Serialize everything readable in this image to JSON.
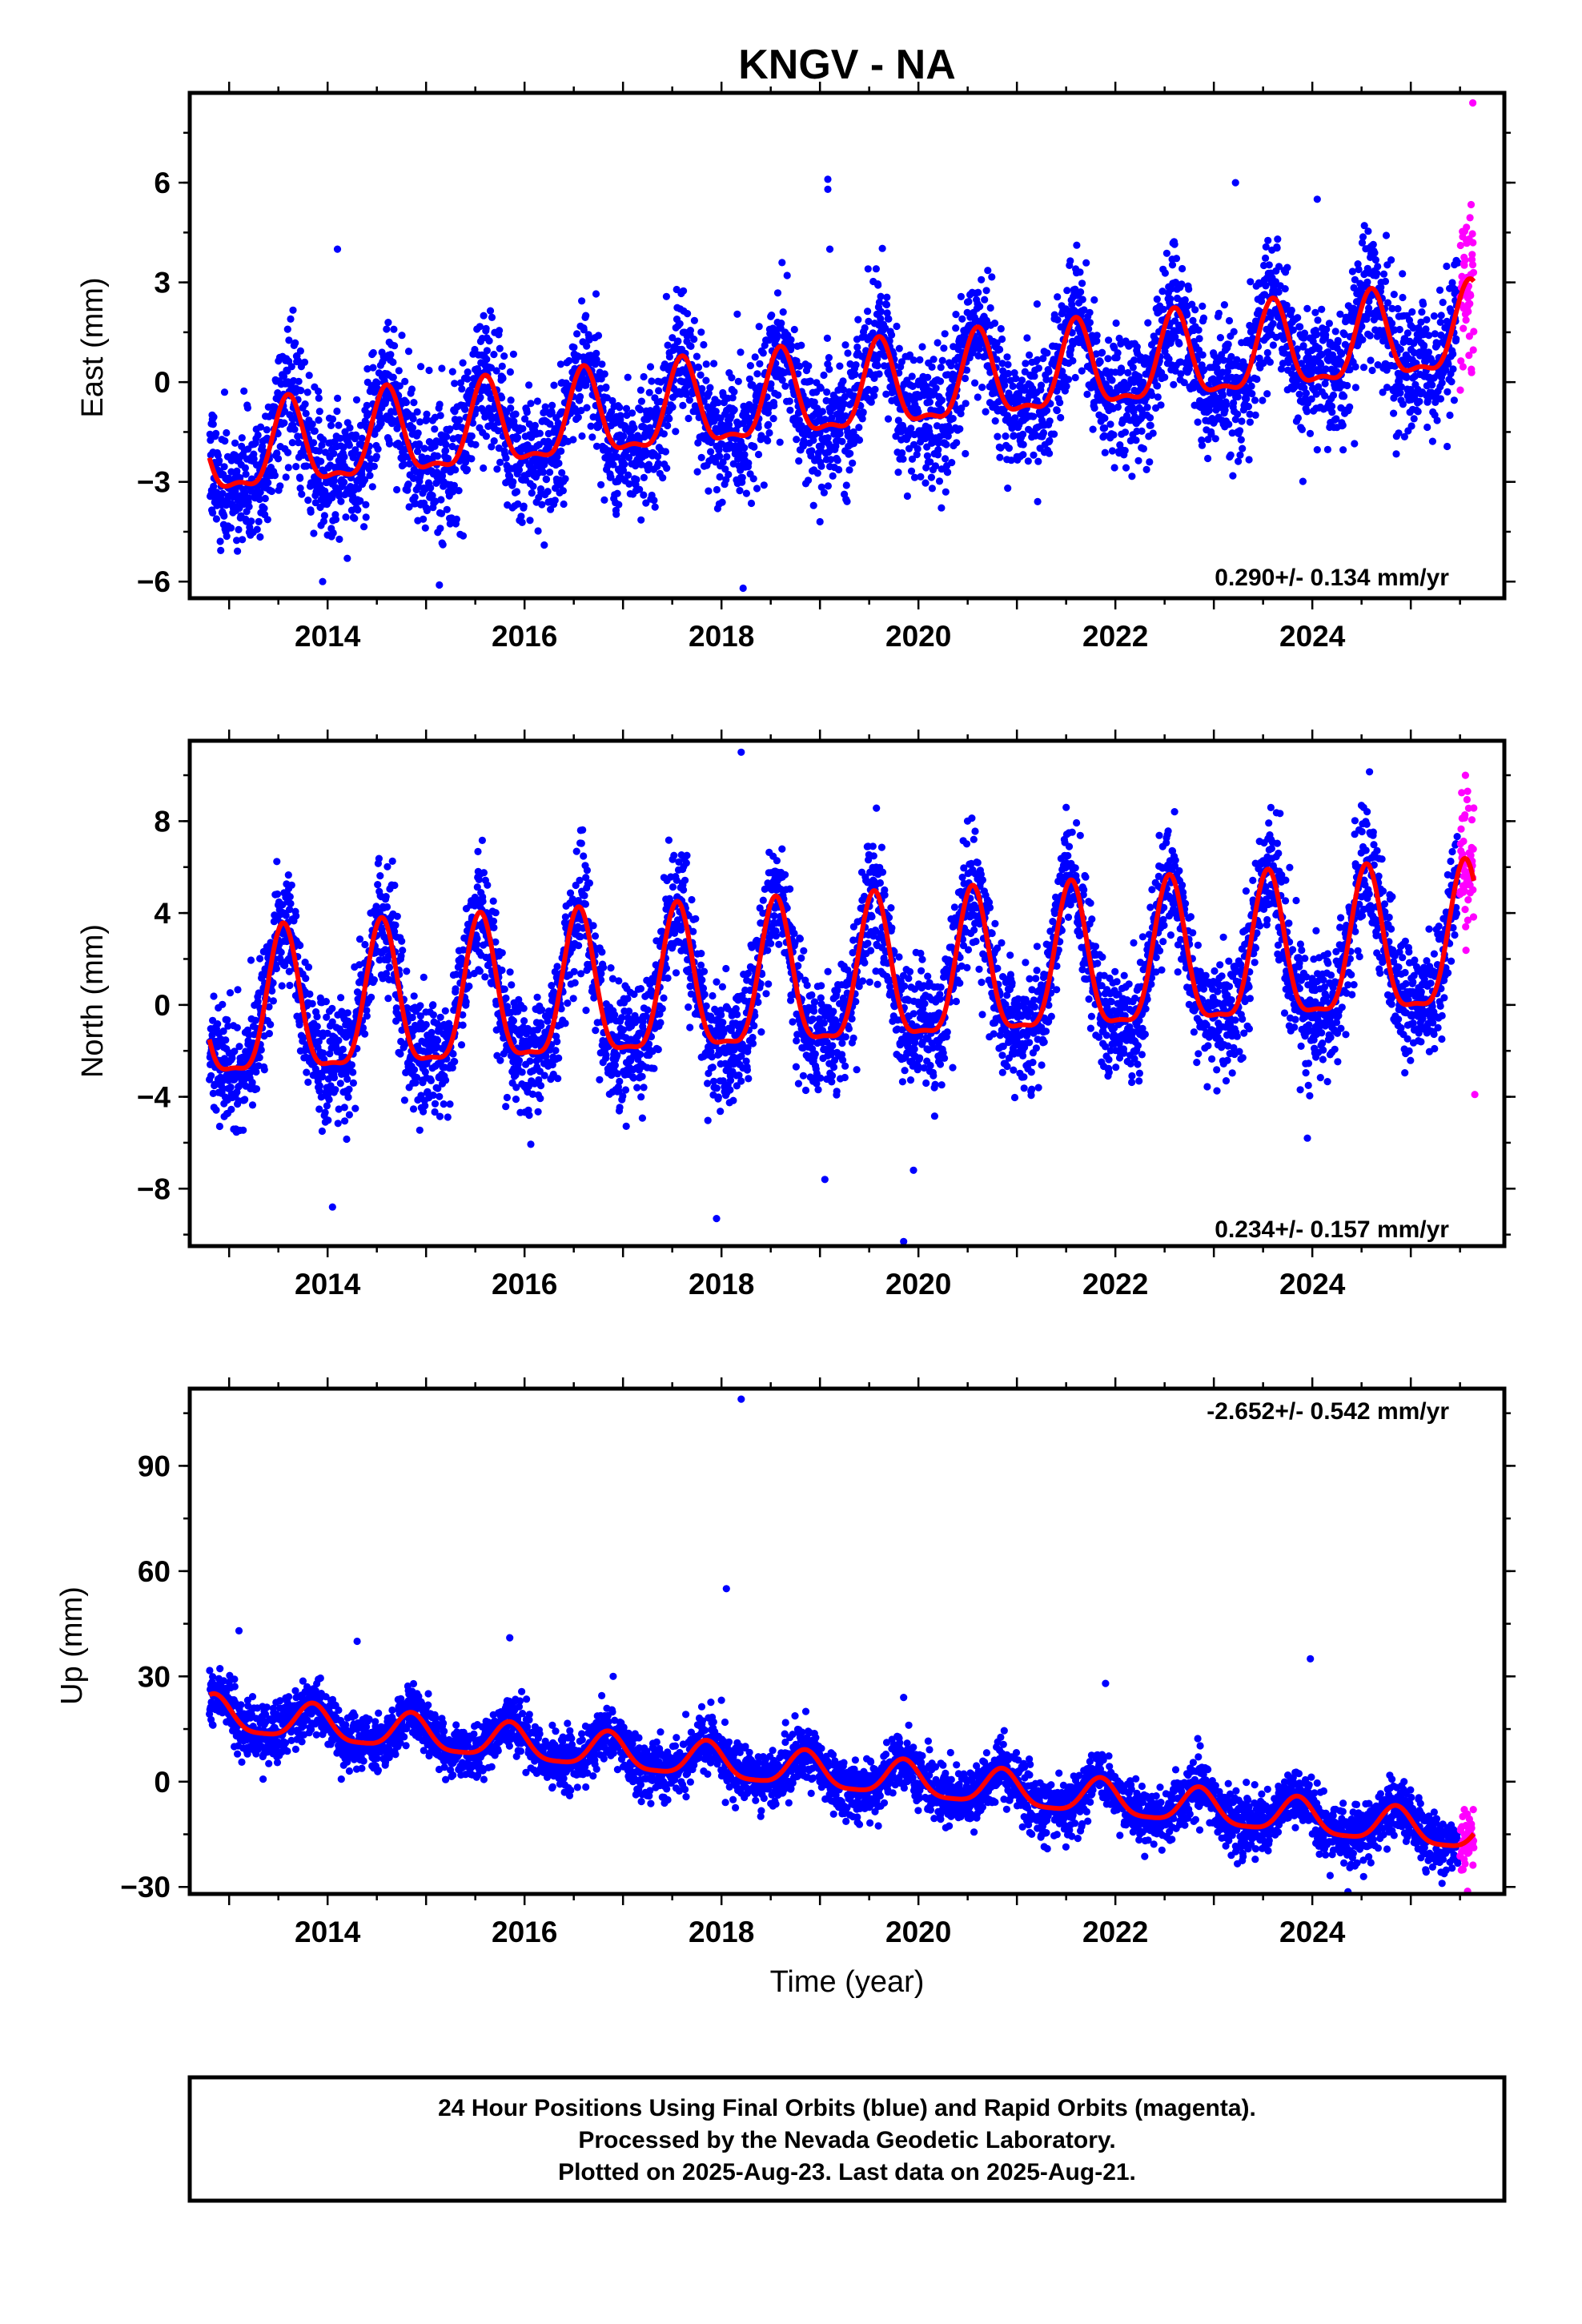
{
  "chart_data": [
    {
      "type": "scatter",
      "title": "KNGV - NA",
      "ylabel": "East (mm)",
      "xlabel": "",
      "xlim": [
        2012.6,
        2025.95
      ],
      "ylim": [
        -6.5,
        8.7
      ],
      "yticks": [
        -6,
        -3,
        0,
        3,
        6
      ],
      "ytick_labels": [
        "−6",
        "−3",
        "0",
        "3",
        "6"
      ],
      "xticks": [
        2014,
        2016,
        2018,
        2020,
        2022,
        2024
      ],
      "xtick_labels": [
        "2014",
        "2016",
        "2018",
        "2020",
        "2022",
        "2024"
      ],
      "rate_label": "0.290+/- 0.134 mm/yr",
      "rate_position": "bottom-right",
      "model": {
        "t0": 2012.8,
        "offset": -2.3,
        "rate": 0.29,
        "annual_amp": 1.25,
        "annual_peak": 2013.6,
        "semiannual_amp": 0.45,
        "semiannual_peak": 2013.6
      },
      "scatter": {
        "start": 2012.8,
        "end": 2025.48,
        "noise_sd": 0.95,
        "final_color": "#0000ff",
        "rapid_color": "#ff00ff",
        "rapid_start": 2025.5,
        "rapid_end": 2025.64
      },
      "outliers": [
        [
          2013.95,
          -6.0
        ],
        [
          2014.2,
          -5.3
        ],
        [
          2019.08,
          6.1
        ],
        [
          2019.08,
          5.8
        ],
        [
          2019.1,
          4.0
        ],
        [
          2018.22,
          -6.2
        ],
        [
          2023.22,
          6.0
        ],
        [
          2024.05,
          5.5
        ],
        [
          2025.63,
          8.4
        ],
        [
          2014.1,
          4.0
        ],
        [
          2016.2,
          -4.9
        ],
        [
          2019.0,
          -4.2
        ]
      ],
      "series": [
        {
          "name": "Final Orbits",
          "color": "#0000ff"
        },
        {
          "name": "Rapid Orbits",
          "color": "#ff00ff"
        }
      ]
    },
    {
      "type": "scatter",
      "title": "",
      "ylabel": "North (mm)",
      "xlabel": "",
      "xlim": [
        2012.6,
        2025.95
      ],
      "ylim": [
        -10.5,
        11.5
      ],
      "yticks": [
        -8,
        -4,
        0,
        4,
        8
      ],
      "ytick_labels": [
        "−8",
        "−4",
        "0",
        "4",
        "8"
      ],
      "xticks": [
        2014,
        2016,
        2018,
        2020,
        2022,
        2024
      ],
      "xtick_labels": [
        "2014",
        "2016",
        "2018",
        "2020",
        "2022",
        "2024"
      ],
      "rate_label": "0.234+/- 0.157 mm/yr",
      "rate_position": "bottom-right",
      "model": {
        "t0": 2012.8,
        "offset": -0.6,
        "rate": 0.234,
        "annual_amp": 3.1,
        "annual_peak": 2013.55,
        "semiannual_amp": 0.9,
        "semiannual_peak": 2013.55
      },
      "scatter": {
        "start": 2012.8,
        "end": 2025.48,
        "noise_sd": 1.3,
        "final_color": "#0000ff",
        "rapid_color": "#ff00ff",
        "rapid_start": 2025.5,
        "rapid_end": 2025.64
      },
      "outliers": [
        [
          2018.2,
          11.0
        ],
        [
          2017.95,
          -9.3
        ],
        [
          2019.85,
          -10.3
        ],
        [
          2019.95,
          -7.2
        ],
        [
          2019.05,
          -7.6
        ],
        [
          2021.5,
          8.6
        ],
        [
          2014.05,
          -8.8
        ],
        [
          2023.95,
          -5.8
        ],
        [
          2025.65,
          -3.9
        ]
      ],
      "series": [
        {
          "name": "Final Orbits",
          "color": "#0000ff"
        },
        {
          "name": "Rapid Orbits",
          "color": "#ff00ff"
        }
      ]
    },
    {
      "type": "scatter",
      "title": "",
      "ylabel": "Up (mm)",
      "xlabel": "Time (year)",
      "xlim": [
        2012.6,
        2025.95
      ],
      "ylim": [
        -32,
        112
      ],
      "yticks": [
        -30,
        0,
        30,
        60,
        90
      ],
      "ytick_labels": [
        "−30",
        "0",
        "30",
        "60",
        "90"
      ],
      "xticks": [
        2014,
        2016,
        2018,
        2020,
        2022,
        2024
      ],
      "xtick_labels": [
        "2014",
        "2016",
        "2018",
        "2020",
        "2022",
        "2024"
      ],
      "rate_label": "-2.652+/- 0.542 mm/yr",
      "rate_position": "top-right",
      "model": {
        "t0": 2012.8,
        "offset": 19.0,
        "rate": -2.652,
        "annual_amp": 5.0,
        "annual_peak": 2013.85,
        "semiannual_amp": 1.2,
        "semiannual_peak": 2013.85
      },
      "scatter": {
        "start": 2012.8,
        "end": 2025.48,
        "noise_sd": 4.0,
        "final_color": "#0000ff",
        "rapid_color": "#ff00ff",
        "rapid_start": 2025.5,
        "rapid_end": 2025.64
      },
      "outliers": [
        [
          2018.2,
          109
        ],
        [
          2018.05,
          55
        ],
        [
          2013.1,
          43
        ],
        [
          2015.85,
          41
        ],
        [
          2014.3,
          40
        ],
        [
          2023.98,
          35
        ],
        [
          2021.9,
          28
        ],
        [
          2019.85,
          24
        ],
        [
          2016.9,
          30
        ]
      ],
      "series": [
        {
          "name": "Final Orbits",
          "color": "#0000ff"
        },
        {
          "name": "Rapid Orbits",
          "color": "#ff00ff"
        }
      ]
    }
  ],
  "footer": {
    "line1": "24 Hour Positions Using Final Orbits (blue) and Rapid Orbits (magenta).",
    "line2": "Processed by the Nevada Geodetic Laboratory.",
    "line3": "Plotted on 2025-Aug-23. Last data on 2025-Aug-21."
  }
}
